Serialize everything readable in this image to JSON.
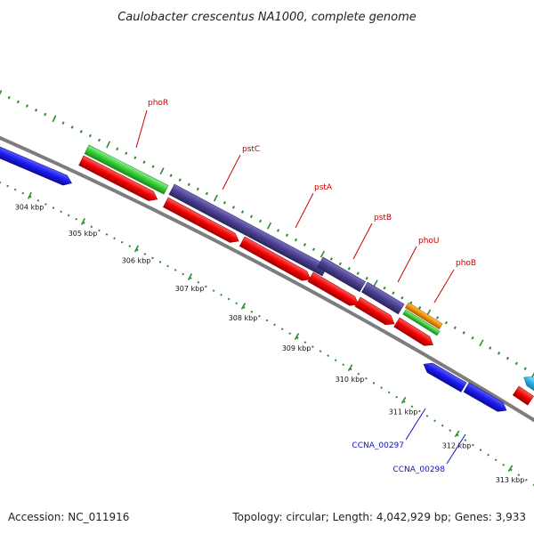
{
  "title": "Caulobacter crescentus NA1000, complete genome",
  "footer": {
    "accession": "Accession: NC_011916",
    "summary": "Topology: circular; Length: 4,042,929 bp; Genes: 3,933"
  },
  "ticks": [
    "304 kbp",
    "305 kbp",
    "306 kbp",
    "307 kbp",
    "308 kbp",
    "309 kbp",
    "310 kbp",
    "311 kbp",
    "312 kbp",
    "313 kbp"
  ],
  "gene_labels": [
    {
      "name": "phoR",
      "color": "#cc0000"
    },
    {
      "name": "pstC",
      "color": "#cc0000"
    },
    {
      "name": "pstA",
      "color": "#cc0000"
    },
    {
      "name": "pstB",
      "color": "#cc0000"
    },
    {
      "name": "phoU",
      "color": "#cc0000"
    },
    {
      "name": "phoB",
      "color": "#cc0000"
    },
    {
      "name": "CCNA_00297",
      "color": "#1010c0"
    },
    {
      "name": "CCNA_00298",
      "color": "#1010c0"
    }
  ],
  "colors": {
    "cds_red": "#ee0000",
    "cds_blue": "#1a1aee",
    "green": "#33cc33",
    "purple": "#4a3f8f",
    "orange": "#f08c00",
    "cyan": "#29b6e8",
    "backbone": "#888888",
    "dots": "#2e8b2e"
  }
}
